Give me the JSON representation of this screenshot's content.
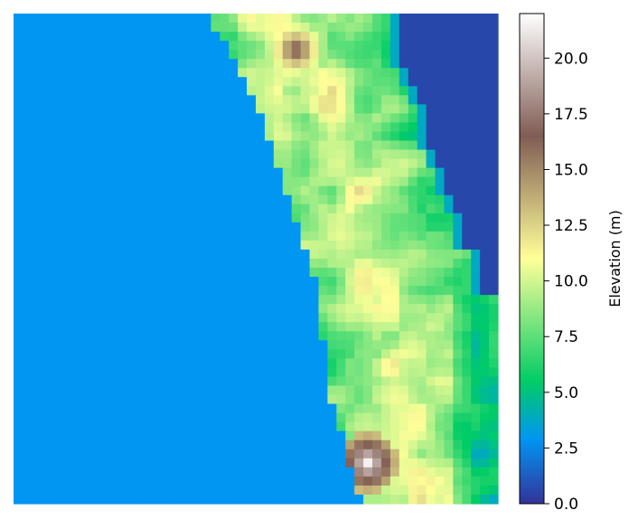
{
  "chart_data": {
    "type": "heatmap",
    "title": "",
    "xlabel": "",
    "ylabel": "",
    "colorbar": {
      "label": "Elevation (m)",
      "range": [
        0,
        22
      ],
      "ticks": [
        0,
        2.5,
        5,
        7.5,
        10,
        12.5,
        15,
        17.5,
        20
      ],
      "tick_labels": [
        "0.0",
        "2.5",
        "5.0",
        "7.5",
        "10.0",
        "12.5",
        "15.0",
        "17.5",
        "20.0"
      ],
      "colormap": "terrain",
      "stops": [
        {
          "v": 0.0,
          "color": "#333399"
        },
        {
          "v": 2.9,
          "color": "#0096f2"
        },
        {
          "v": 5.5,
          "color": "#01cc66"
        },
        {
          "v": 11.0,
          "color": "#ffff99"
        },
        {
          "v": 16.5,
          "color": "#805c54"
        },
        {
          "v": 22.0,
          "color": "#ffffff"
        }
      ]
    },
    "grid": {
      "cols": 54,
      "rows": 54,
      "cell_size_m": 1
    },
    "features": {
      "sea_level_m": 2.9,
      "lagoon_level_m": 0.6,
      "peaks": [
        {
          "col": 31,
          "row": 3.5,
          "elevation_m": 17.0
        },
        {
          "col": 39,
          "row": 49,
          "elevation_m": 21.5
        }
      ]
    }
  }
}
